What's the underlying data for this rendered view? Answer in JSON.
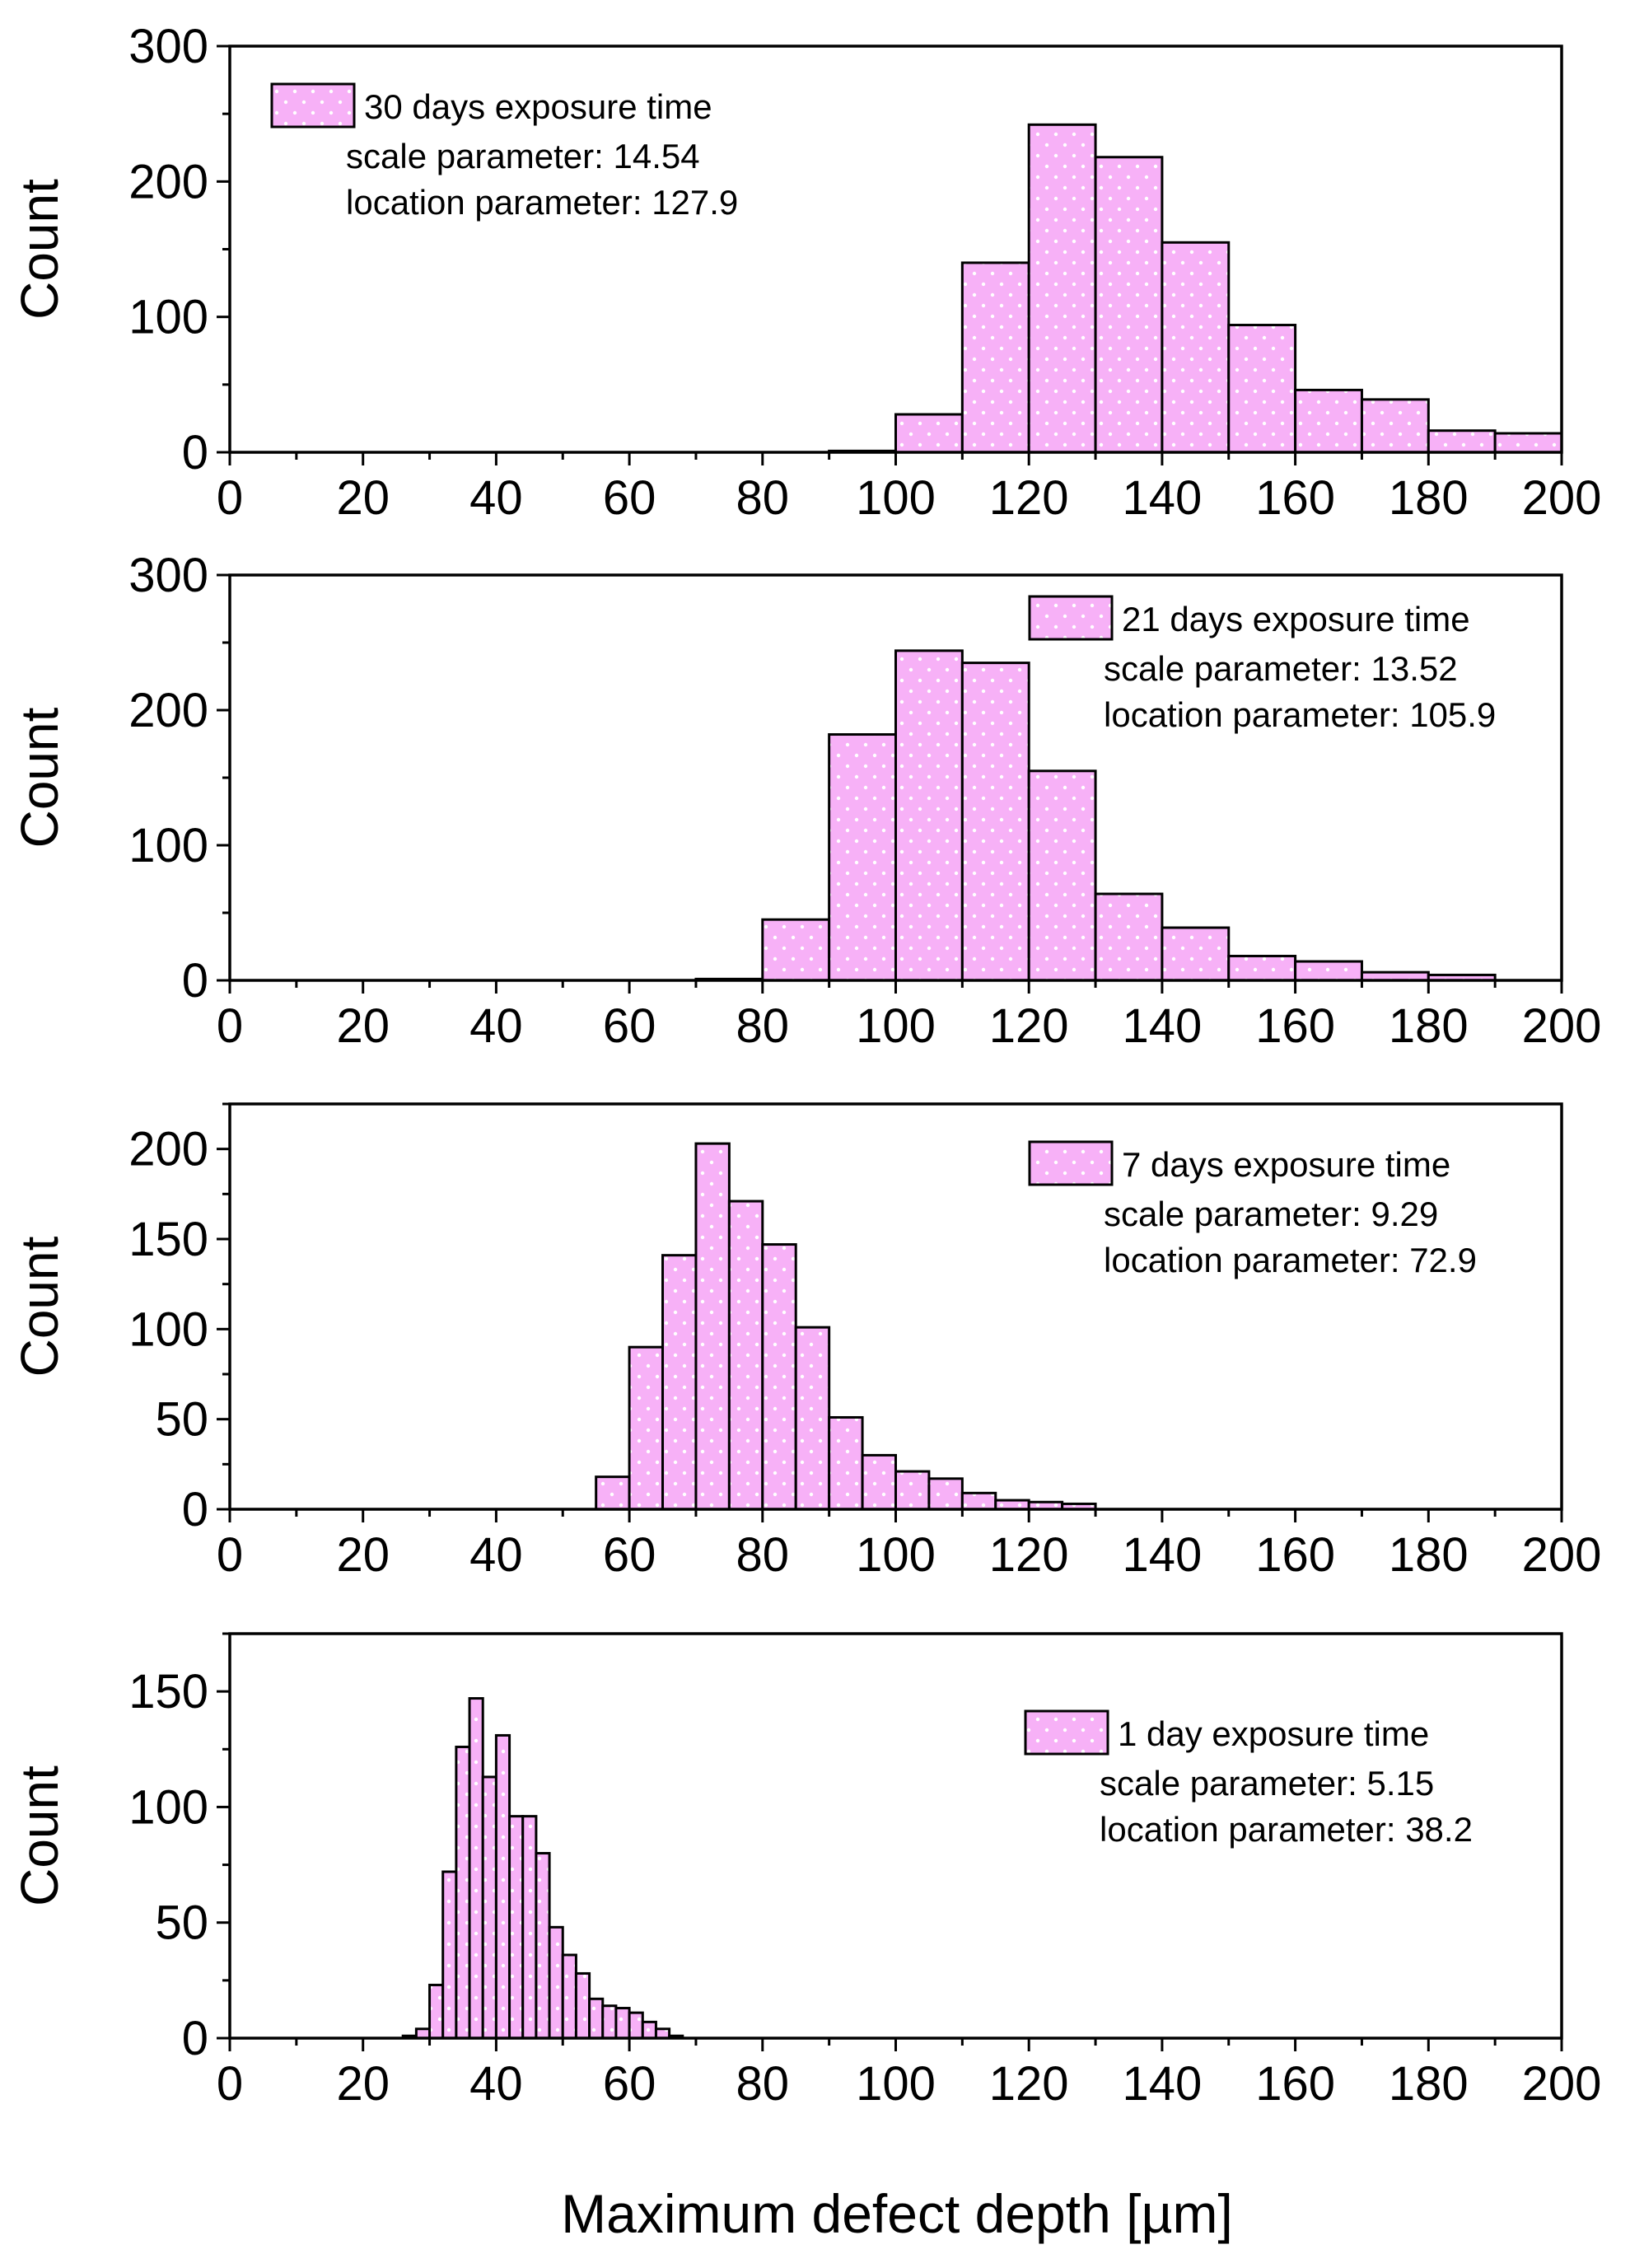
{
  "figure": {
    "xlabel": "Maximum defect depth [µm]",
    "bar_color": "#f7b1f7",
    "bar_stroke": "#000000",
    "dot_color": "#ffffff"
  },
  "chart_data": [
    {
      "type": "bar",
      "title": "",
      "ylabel": "Count",
      "xlim": [
        0,
        200
      ],
      "ylim": [
        0,
        300
      ],
      "xticks": [
        0,
        20,
        40,
        60,
        80,
        100,
        120,
        140,
        160,
        180,
        200
      ],
      "yticks": [
        0,
        100,
        200,
        300
      ],
      "legend": {
        "label": "30 days exposure time",
        "lines": [
          "scale parameter: 14.54",
          "location parameter: 127.9"
        ],
        "placement": "top-left"
      },
      "bin_edges": [
        90,
        100,
        110,
        120,
        130,
        140,
        150,
        160,
        170,
        180,
        190,
        200
      ],
      "values": [
        1,
        28,
        140,
        242,
        218,
        155,
        94,
        46,
        39,
        16,
        14
      ]
    },
    {
      "type": "bar",
      "title": "",
      "ylabel": "Count",
      "xlim": [
        0,
        200
      ],
      "ylim": [
        0,
        300
      ],
      "xticks": [
        0,
        20,
        40,
        60,
        80,
        100,
        120,
        140,
        160,
        180,
        200
      ],
      "yticks": [
        0,
        100,
        200,
        300
      ],
      "legend": {
        "label": "21 days exposure time",
        "lines": [
          "scale parameter: 13.52",
          "location parameter: 105.9"
        ],
        "placement": "top-right"
      },
      "bin_edges": [
        70,
        80,
        90,
        100,
        110,
        120,
        130,
        140,
        150,
        160,
        170,
        180,
        190
      ],
      "values": [
        1,
        45,
        182,
        244,
        235,
        155,
        64,
        39,
        18,
        14,
        6,
        4
      ]
    },
    {
      "type": "bar",
      "title": "",
      "ylabel": "Count",
      "xlim": [
        0,
        200
      ],
      "ylim": [
        0,
        225
      ],
      "xticks": [
        0,
        20,
        40,
        60,
        80,
        100,
        120,
        140,
        160,
        180,
        200
      ],
      "yticks": [
        0,
        50,
        100,
        150,
        200
      ],
      "legend": {
        "label": "7 days exposure time",
        "lines": [
          "scale parameter: 9.29",
          "location parameter: 72.9"
        ],
        "placement": "top-right"
      },
      "bin_edges": [
        55,
        60,
        65,
        70,
        75,
        80,
        85,
        90,
        95,
        100,
        105,
        110,
        115,
        120,
        125,
        130
      ],
      "values": [
        18,
        90,
        141,
        203,
        171,
        147,
        101,
        51,
        30,
        21,
        17,
        9,
        5,
        4,
        3
      ]
    },
    {
      "type": "bar",
      "title": "",
      "ylabel": "Count",
      "xlim": [
        0,
        200
      ],
      "ylim": [
        0,
        175
      ],
      "xticks": [
        0,
        20,
        40,
        60,
        80,
        100,
        120,
        140,
        160,
        180,
        200
      ],
      "yticks": [
        0,
        50,
        100,
        150
      ],
      "legend": {
        "label": "1 day exposure time",
        "lines": [
          "scale parameter: 5.15",
          "location parameter: 38.2"
        ],
        "placement": "top-right"
      },
      "bin_edges": [
        26,
        28,
        30,
        32,
        34,
        36,
        38,
        40,
        42,
        44,
        46,
        48,
        50,
        52,
        54,
        56,
        58,
        60,
        62,
        64,
        66,
        68
      ],
      "values": [
        1,
        4,
        23,
        72,
        126,
        147,
        113,
        131,
        96,
        96,
        80,
        48,
        36,
        28,
        17,
        14,
        13,
        11,
        7,
        4,
        1
      ]
    }
  ]
}
